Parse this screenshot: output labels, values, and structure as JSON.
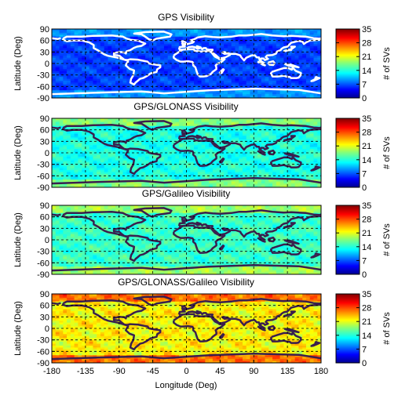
{
  "chart_data": [
    {
      "type": "heatmap",
      "title": "GPS Visibility",
      "ylabel": "Latitude (Deg)",
      "colorbar_label": "# of SVs",
      "xlim": [
        -180,
        180
      ],
      "ylim": [
        -90,
        90
      ],
      "yticks": [
        90,
        60,
        30,
        0,
        -30,
        -60,
        -90
      ],
      "colorbar_ticks": [
        35,
        28,
        21,
        14,
        7,
        0
      ],
      "clim": [
        0,
        35
      ],
      "grid": "dashed",
      "typical_range": [
        4,
        9
      ],
      "coastline_color": "#ffffff"
    },
    {
      "type": "heatmap",
      "title": "GPS/GLONASS Visibility",
      "ylabel": "Latitude (Deg)",
      "colorbar_label": "# of SVs",
      "xlim": [
        -180,
        180
      ],
      "ylim": [
        -90,
        90
      ],
      "yticks": [
        90,
        60,
        30,
        0,
        -30,
        -60,
        -90
      ],
      "colorbar_ticks": [
        35,
        28,
        21,
        14,
        7,
        0
      ],
      "clim": [
        0,
        35
      ],
      "grid": "dashed",
      "typical_range": [
        11,
        17
      ],
      "coastline_color": "#3a1f4e"
    },
    {
      "type": "heatmap",
      "title": "GPS/Galileo Visibility",
      "ylabel": "Latitude (Deg)",
      "colorbar_label": "# of SVs",
      "xlim": [
        -180,
        180
      ],
      "ylim": [
        -90,
        90
      ],
      "yticks": [
        90,
        60,
        30,
        0,
        -30,
        -60,
        -90
      ],
      "colorbar_ticks": [
        35,
        28,
        21,
        14,
        7,
        0
      ],
      "clim": [
        0,
        35
      ],
      "grid": "dashed",
      "typical_range": [
        12,
        18
      ],
      "coastline_color": "#3a1f4e"
    },
    {
      "type": "heatmap",
      "title": "GPS/GLONASS/Galileo Visibility",
      "ylabel": "Latitude (Deg)",
      "xlabel": "Longitude (Deg)",
      "colorbar_label": "# of SVs",
      "xlim": [
        -180,
        180
      ],
      "ylim": [
        -90,
        90
      ],
      "xticks": [
        -180,
        -135,
        -90,
        -45,
        0,
        45,
        90,
        135,
        180
      ],
      "yticks": [
        90,
        60,
        30,
        0,
        -30,
        -60,
        -90
      ],
      "colorbar_ticks": [
        35,
        28,
        21,
        14,
        7,
        0
      ],
      "clim": [
        0,
        35
      ],
      "grid": "dashed",
      "typical_range": [
        18,
        26
      ],
      "coastline_color": "#3a1f4e"
    }
  ]
}
